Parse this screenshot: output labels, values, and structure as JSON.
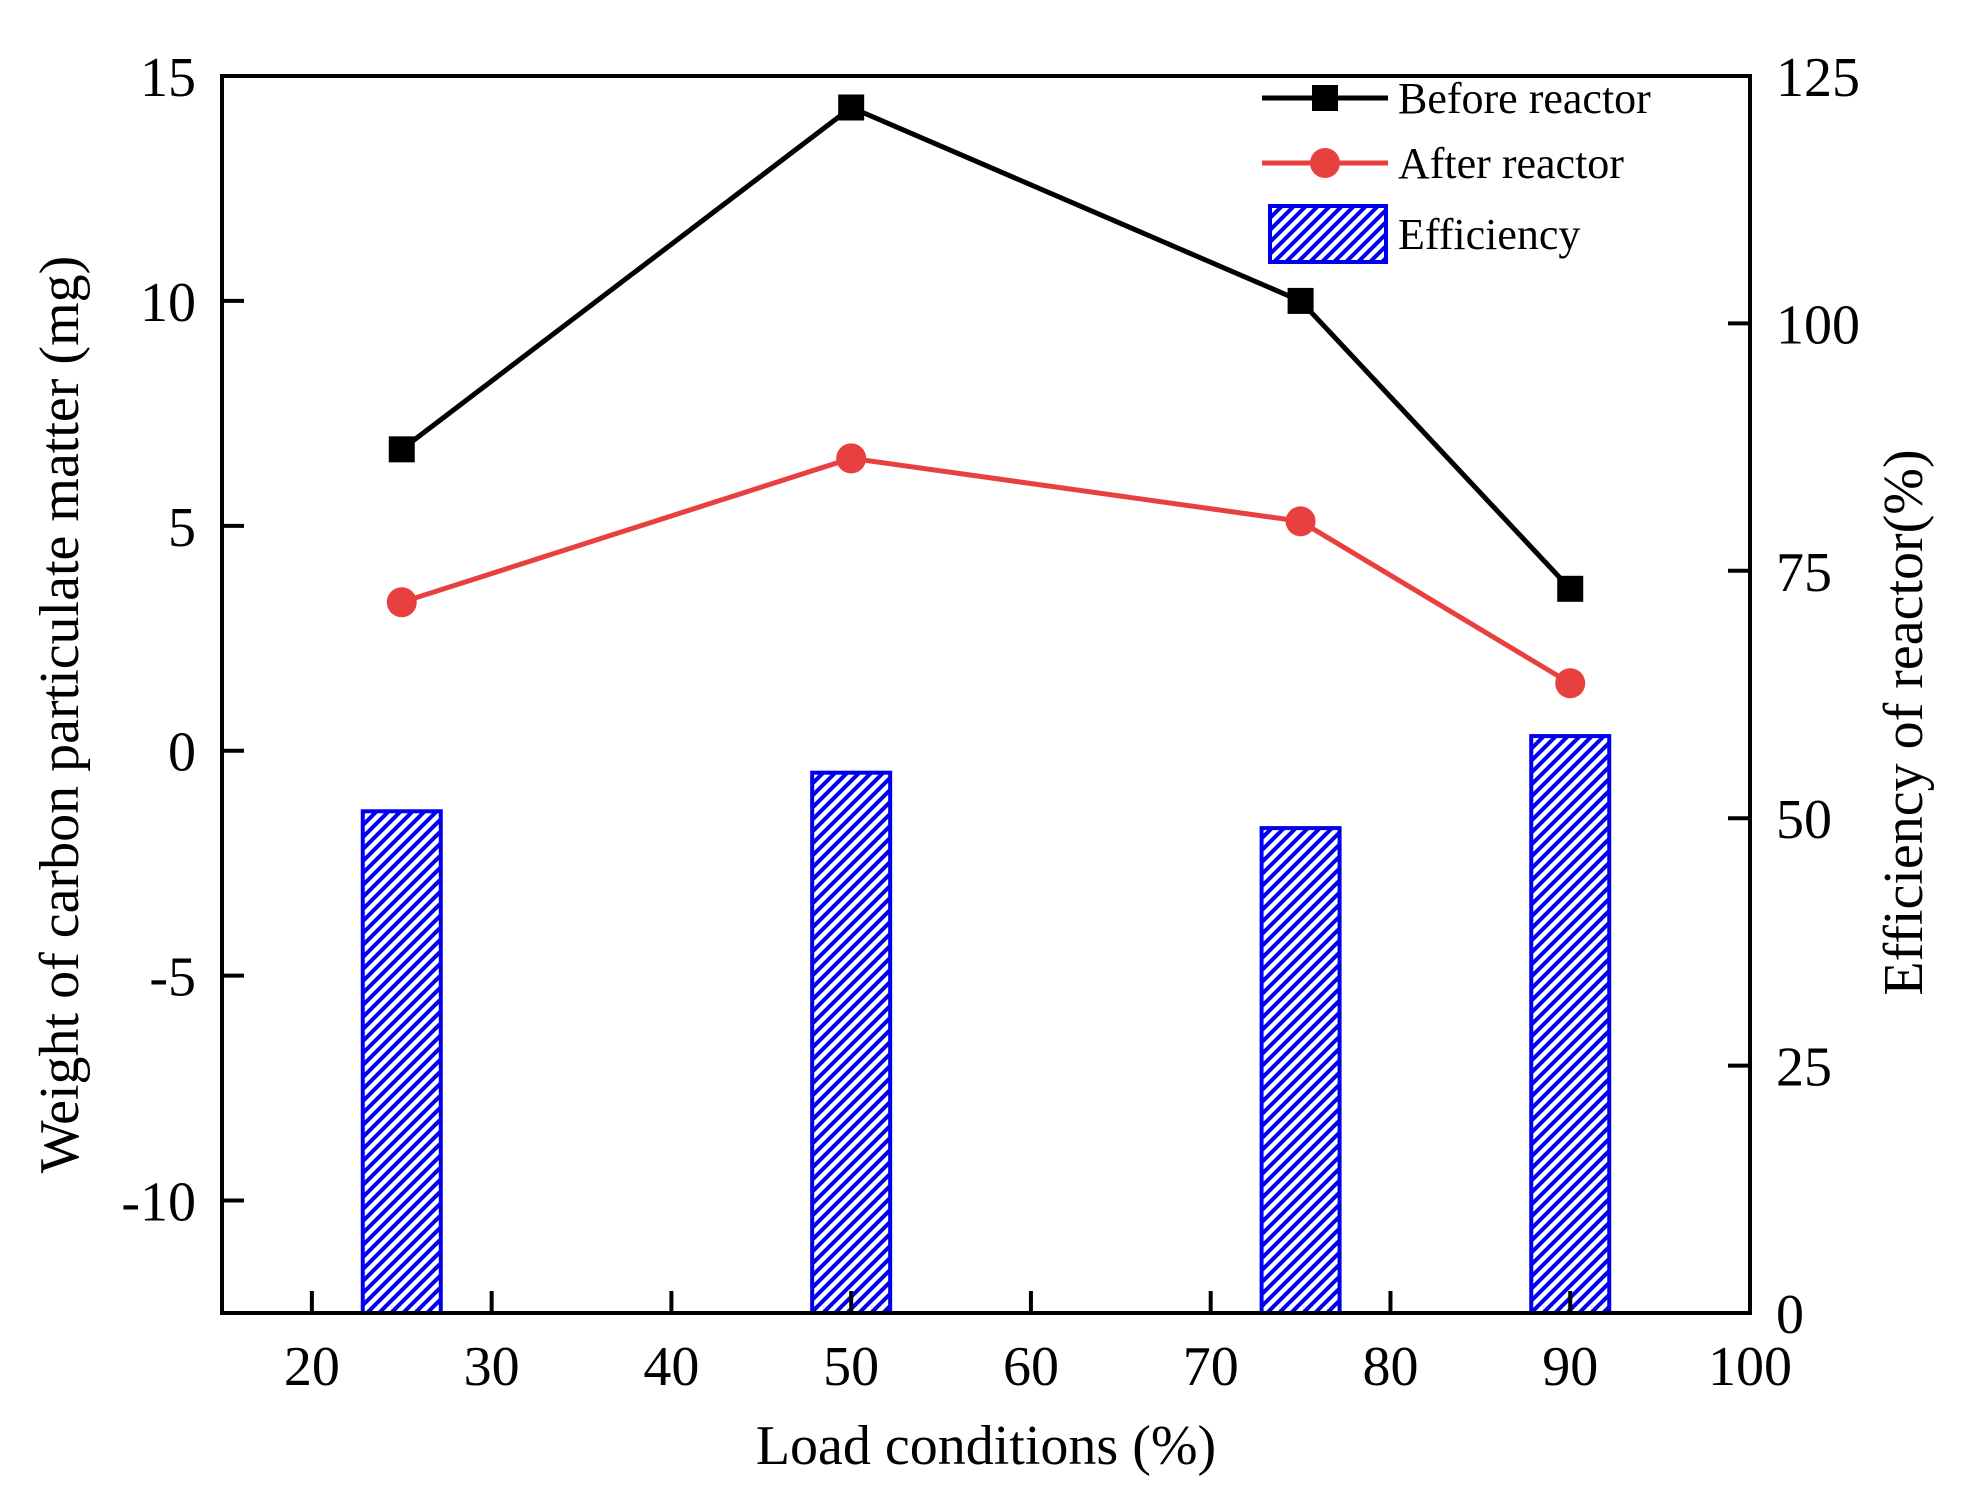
{
  "chart_data": {
    "type": "bar+line",
    "title": "",
    "xlabel": "Load conditions (%)",
    "ylabel_left": "Weight of carbon particulate matter (mg)",
    "ylabel_right": "Efficiency of reactor(%)",
    "xlim": [
      15,
      100
    ],
    "ylim_left": [
      -12.5,
      15
    ],
    "ylim_right": [
      0,
      125
    ],
    "x_ticks": [
      "20",
      "30",
      "40",
      "50",
      "60",
      "70",
      "80",
      "90",
      "100"
    ],
    "y_ticks_left": [
      "-10",
      "-5",
      "0",
      "5",
      "10",
      "15"
    ],
    "y_ticks_right": [
      "0",
      "25",
      "50",
      "75",
      "100",
      "125"
    ],
    "x": [
      25,
      50,
      75,
      90
    ],
    "series": [
      {
        "name": "Before reactor",
        "kind": "line",
        "axis": "left",
        "color": "#000000",
        "marker": "square",
        "values": [
          6.7,
          14.3,
          10.0,
          3.6
        ]
      },
      {
        "name": "After reactor",
        "kind": "line",
        "axis": "left",
        "color": "#e8403f",
        "marker": "circle",
        "values": [
          3.3,
          6.5,
          5.1,
          1.5
        ]
      },
      {
        "name": "Efficiency",
        "kind": "bar",
        "axis": "right",
        "color": "#0000ee",
        "pattern": "diagonal-hatch",
        "values": [
          50.7,
          54.6,
          49.0,
          58.3
        ]
      }
    ],
    "legend_position": "top-right",
    "grid": false
  }
}
